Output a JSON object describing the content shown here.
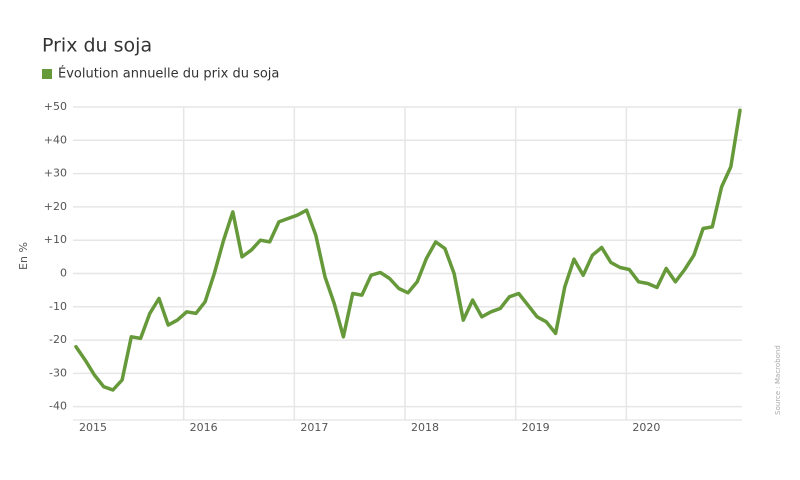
{
  "chart_data": {
    "type": "line",
    "title": "Prix du soja",
    "legend": "Évolution annuelle du prix du soja",
    "y_label": "En %",
    "source": "Source : Macrobond",
    "color": "#66993a",
    "grid": true,
    "categories": [
      "2015",
      null,
      null,
      null,
      null,
      null,
      null,
      null,
      null,
      null,
      null,
      null,
      "2016",
      null,
      null,
      null,
      null,
      null,
      null,
      null,
      null,
      null,
      null,
      null,
      "2017",
      null,
      null,
      null,
      null,
      null,
      null,
      null,
      null,
      null,
      null,
      null,
      "2018",
      null,
      null,
      null,
      null,
      null,
      null,
      null,
      null,
      null,
      null,
      null,
      "2019",
      null,
      null,
      null,
      null,
      null,
      null,
      null,
      null,
      null,
      null,
      null,
      "2020",
      null,
      null,
      null,
      null,
      null,
      null,
      null,
      null,
      null,
      null,
      null,
      null
    ],
    "values": [
      -22,
      -26,
      -30.5,
      -34,
      -35,
      -32,
      -19,
      -19.5,
      -12,
      -7.5,
      -15.5,
      -14,
      -11.5,
      -12,
      -8.5,
      0,
      10,
      18.5,
      5,
      7,
      10,
      9.5,
      15.5,
      16.5,
      17.5,
      19,
      11.5,
      -1,
      -9,
      -19,
      -6,
      -6.5,
      -0.5,
      0.3,
      -1.5,
      -4.5,
      -5.8,
      -2.5,
      4.5,
      9.5,
      7.5,
      0,
      -14,
      -8,
      -13,
      -11.5,
      -10.5,
      -7,
      -6,
      -9.5,
      -13,
      -14.5,
      -18,
      -4,
      4.3,
      -0.5,
      5.5,
      7.8,
      3.3,
      1.8,
      1.2,
      -2.5,
      -3,
      -4.2,
      1.5,
      -2.5,
      1.2,
      5.5,
      13.5,
      14,
      26,
      32,
      49
    ],
    "ylim": [
      -44,
      50
    ],
    "yticks": [
      {
        "value": 50,
        "label": "+50"
      },
      {
        "value": 40,
        "label": "+40"
      },
      {
        "value": 30,
        "label": "+30"
      },
      {
        "value": 20,
        "label": "+20"
      },
      {
        "value": 10,
        "label": "+10"
      },
      0,
      -10,
      -20,
      -30,
      -40
    ]
  }
}
